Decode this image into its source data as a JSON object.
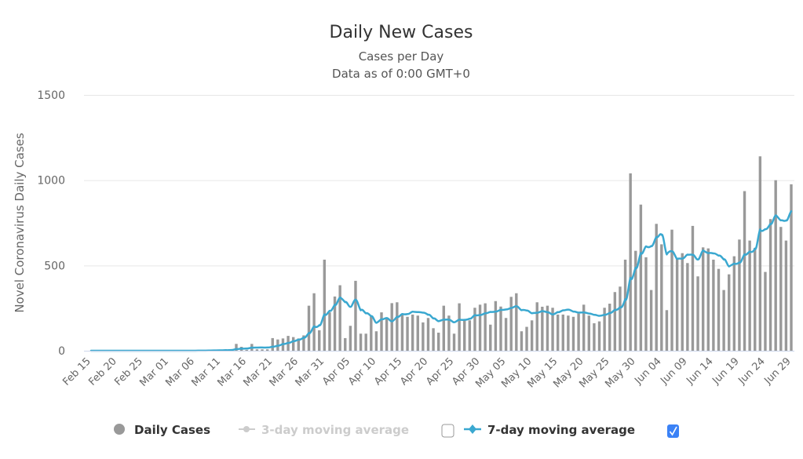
{
  "chart_data": {
    "type": "bar",
    "title": "Daily New Cases",
    "subtitle": [
      "Cases per Day",
      "Data as of 0:00 GMT+0"
    ],
    "xlabel": "",
    "ylabel": "Novel Coronavirus Daily Cases",
    "ylim": [
      0,
      1500
    ],
    "yticks": [
      "0",
      "500",
      "1000",
      "1500"
    ],
    "ytick_values": [
      0,
      500,
      1000,
      1500
    ],
    "grid": true,
    "start_date": "2020-02-15",
    "xtick_labels": [
      "Feb 15",
      "Feb 20",
      "Feb 25",
      "Mar 01",
      "Mar 06",
      "Mar 11",
      "Mar 16",
      "Mar 21",
      "Mar 26",
      "Mar 31",
      "Apr 05",
      "Apr 10",
      "Apr 15",
      "Apr 20",
      "Apr 25",
      "Apr 30",
      "May 05",
      "May 10",
      "May 15",
      "May 20",
      "May 25",
      "May 30",
      "Jun 04",
      "Jun 09",
      "Jun 14",
      "Jun 19",
      "Jun 24",
      "Jun 29"
    ],
    "xtick_every_days": 5,
    "series": [
      {
        "name": "Daily Cases",
        "type": "bar",
        "color": "#999999",
        "visible": true,
        "values": [
          0,
          0,
          0,
          0,
          0,
          0,
          0,
          0,
          0,
          0,
          0,
          0,
          0,
          0,
          0,
          0,
          0,
          0,
          1,
          0,
          1,
          2,
          2,
          3,
          4,
          5,
          6,
          8,
          40,
          23,
          5,
          40,
          8,
          8,
          8,
          74,
          66,
          72,
          87,
          80,
          72,
          90,
          264,
          337,
          120,
          534,
          225,
          318,
          384,
          74,
          146,
          410,
          100,
          100,
          200,
          114,
          225,
          190,
          279,
          284,
          215,
          199,
          212,
          206,
          166,
          192,
          132,
          106,
          264,
          206,
          100,
          278,
          184,
          178,
          252,
          270,
          278,
          153,
          291,
          259,
          192,
          316,
          337,
          114,
          140,
          178,
          284,
          258,
          264,
          252,
          212,
          212,
          206,
          199,
          218,
          270,
          206,
          161,
          172,
          252,
          276,
          344,
          376,
          534,
          1040,
          586,
          857,
          548,
          356,
          744,
          624,
          238,
          710,
          545,
          572,
          514,
          732,
          436,
          606,
          600,
          534,
          480,
          356,
          448,
          554,
          652,
          936,
          646,
          603,
          1140,
          462,
          772,
          1000,
          726,
          646,
          976
        ]
      },
      {
        "name": "3-day moving average",
        "type": "line",
        "color": "#cccccc",
        "visible": false,
        "window": 3
      },
      {
        "name": "7-day moving average",
        "type": "line",
        "color": "#3aa8d0",
        "visible": true,
        "window": 7
      }
    ],
    "legend": {
      "placement": "bottom",
      "checkbox_3day": false,
      "checkbox_7day": true
    }
  }
}
